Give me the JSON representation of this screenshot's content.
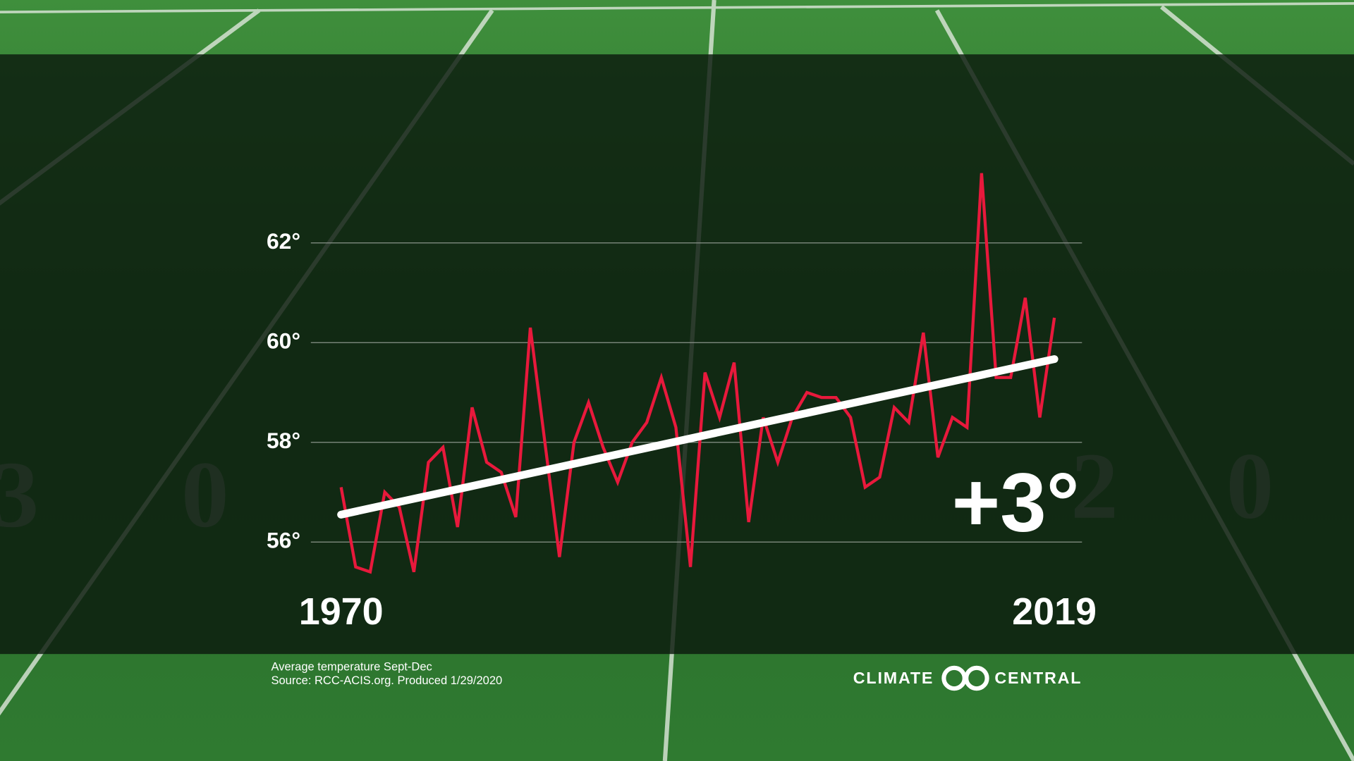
{
  "chart_data": {
    "type": "line",
    "x": [
      1970,
      1971,
      1972,
      1973,
      1974,
      1975,
      1976,
      1977,
      1978,
      1979,
      1980,
      1981,
      1982,
      1983,
      1984,
      1985,
      1986,
      1987,
      1988,
      1989,
      1990,
      1991,
      1992,
      1993,
      1994,
      1995,
      1996,
      1997,
      1998,
      1999,
      2000,
      2001,
      2002,
      2003,
      2004,
      2005,
      2006,
      2007,
      2008,
      2009,
      2010,
      2011,
      2012,
      2013,
      2014,
      2015,
      2016,
      2017,
      2018,
      2019
    ],
    "series": [
      {
        "color": "#e8193c",
        "values": [
          57.1,
          55.5,
          55.4,
          57.0,
          56.7,
          55.4,
          57.6,
          57.9,
          56.3,
          58.7,
          57.6,
          57.4,
          56.5,
          60.3,
          58.0,
          55.7,
          58.0,
          58.8,
          57.9,
          57.2,
          58.0,
          58.4,
          59.3,
          58.3,
          55.5,
          59.4,
          58.5,
          59.6,
          56.4,
          58.5,
          57.6,
          58.5,
          59.0,
          58.9,
          58.9,
          58.5,
          57.1,
          57.3,
          58.7,
          58.4,
          60.2,
          57.7,
          58.5,
          58.3,
          63.4,
          59.3,
          59.3,
          60.9,
          58.5,
          60.5
        ]
      }
    ],
    "trend": {
      "color": "#ffffff",
      "x": [
        1970,
        2019
      ],
      "values": [
        56.55,
        59.67
      ]
    },
    "xlim": [
      1970,
      2019
    ],
    "xticks": [
      1970,
      2019
    ],
    "ylim": [
      55,
      64
    ],
    "yticks": [
      {
        "value": 56,
        "label": "56°"
      },
      {
        "value": 58,
        "label": "58°"
      },
      {
        "value": 60,
        "label": "60°"
      },
      {
        "value": 62,
        "label": "62°"
      }
    ],
    "grid": true,
    "annotation": "+3°",
    "notes": [
      "Average temperature Sept-Dec",
      "Source: RCC-ACIS.org. Produced 1/29/2020"
    ],
    "logo": [
      "CLIMATE",
      "CENTRAL"
    ]
  }
}
